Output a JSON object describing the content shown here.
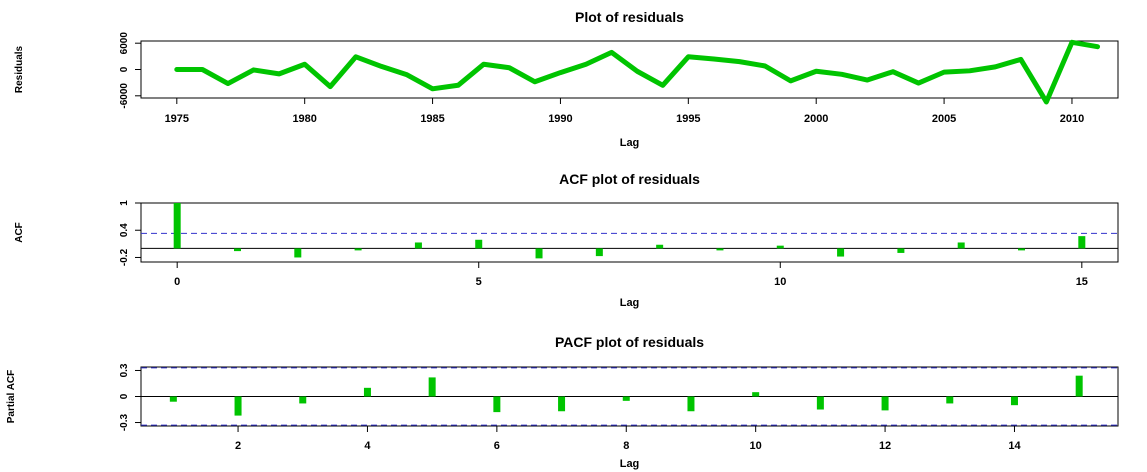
{
  "chart_data": [
    {
      "type": "line",
      "title": "Plot of residuals",
      "xlabel": "Lag",
      "ylabel": "Residuals",
      "xlim": [
        1973.6,
        2011.8
      ],
      "ylim": [
        -6500,
        6500
      ],
      "xticks": [
        1975,
        1980,
        1985,
        1990,
        1995,
        2000,
        2005,
        2010
      ],
      "yticks": [
        -6000,
        0,
        6000
      ],
      "color": "#00c400",
      "x": [
        1975,
        1976,
        1977,
        1978,
        1979,
        1980,
        1981,
        1982,
        1983,
        1984,
        1985,
        1986,
        1987,
        1988,
        1989,
        1990,
        1991,
        1992,
        1993,
        1994,
        1995,
        1996,
        1997,
        1998,
        1999,
        2000,
        2001,
        2002,
        2003,
        2004,
        2005,
        2006,
        2007,
        2008,
        2009,
        2010,
        2011
      ],
      "values": [
        0,
        0,
        -3200,
        -100,
        -1000,
        1200,
        -3900,
        2900,
        700,
        -1200,
        -4400,
        -3600,
        1200,
        400,
        -2800,
        -700,
        1200,
        3900,
        -400,
        -3600,
        2900,
        2400,
        1800,
        800,
        -2600,
        -400,
        -1100,
        -2400,
        -500,
        -3100,
        -600,
        -300,
        600,
        2300,
        -7400,
        6200,
        5200
      ]
    },
    {
      "type": "bar",
      "title": "ACF plot of residuals",
      "xlabel": "Lag",
      "ylabel": "ACF",
      "xlim": [
        -0.6,
        15.6
      ],
      "ylim": [
        -0.3,
        1.0
      ],
      "xticks": [
        0,
        5,
        10,
        15
      ],
      "yticks": [
        -0.2,
        0.4,
        1.0
      ],
      "conf_limit": 0.33,
      "color": "#00c400",
      "conf_color": "#3333cc",
      "x": [
        0,
        1,
        2,
        3,
        4,
        5,
        6,
        7,
        8,
        9,
        10,
        11,
        12,
        13,
        14,
        15
      ],
      "values": [
        1.0,
        -0.06,
        -0.2,
        -0.02,
        0.13,
        0.19,
        -0.22,
        -0.17,
        0.08,
        -0.04,
        0.06,
        -0.18,
        -0.1,
        0.13,
        -0.02,
        0.27
      ]
    },
    {
      "type": "bar",
      "title": "PACF plot of residuals",
      "xlabel": "Lag",
      "ylabel": "Partial ACF",
      "xlim": [
        0.5,
        15.6
      ],
      "ylim": [
        -0.34,
        0.34
      ],
      "xticks": [
        2,
        4,
        6,
        8,
        10,
        12,
        14
      ],
      "yticks": [
        -0.3,
        0.0,
        0.3
      ],
      "conf_limit": 0.33,
      "color": "#00c400",
      "conf_color": "#3333cc",
      "x": [
        1,
        2,
        3,
        4,
        5,
        6,
        7,
        8,
        9,
        10,
        11,
        12,
        13,
        14,
        15
      ],
      "values": [
        -0.06,
        -0.22,
        -0.08,
        0.1,
        0.22,
        -0.18,
        -0.17,
        -0.05,
        -0.17,
        0.05,
        -0.15,
        -0.16,
        -0.08,
        -0.1,
        0.24
      ]
    }
  ]
}
